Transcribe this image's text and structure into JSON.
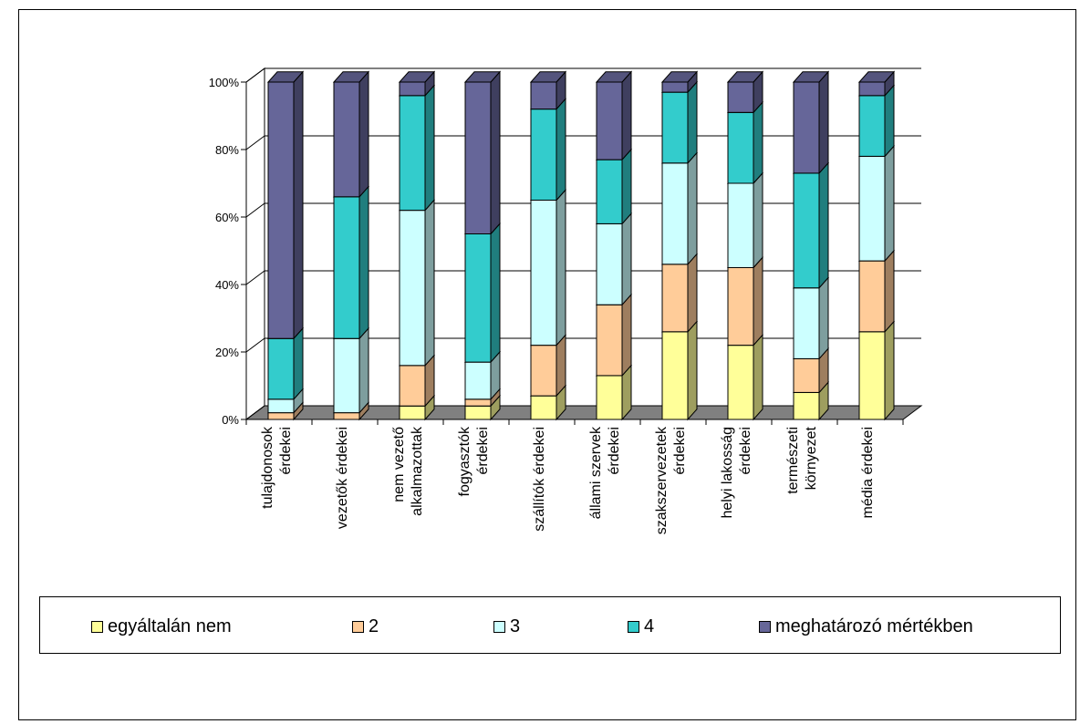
{
  "chart_data": {
    "type": "bar",
    "stacked": "percent",
    "three_d": true,
    "title": "",
    "xlabel": "",
    "ylabel": "",
    "ylim": [
      0,
      100
    ],
    "y_ticks": [
      "0%",
      "20%",
      "40%",
      "60%",
      "80%",
      "100%"
    ],
    "grid": true,
    "legend_position": "bottom",
    "categories": [
      [
        "tulajdonosok",
        "érdekei"
      ],
      [
        "vezetők érdekei"
      ],
      [
        "nem vezető",
        "alkalmazottak"
      ],
      [
        "fogyasztók",
        "érdekei"
      ],
      [
        "szállítók érdekei"
      ],
      [
        "állami szervek",
        "érdekei"
      ],
      [
        "szakszervezetek",
        "érdekei"
      ],
      [
        "helyi lakosság",
        "érdekei"
      ],
      [
        "természeti",
        "környezet"
      ],
      [
        "média érdekei"
      ]
    ],
    "series": [
      {
        "name": "egyáltalán nem",
        "color": "#ffff99",
        "values": [
          0,
          0,
          4,
          4,
          7,
          13,
          26,
          22,
          8,
          26
        ]
      },
      {
        "name": "2",
        "color": "#ffcc99",
        "values": [
          2,
          2,
          12,
          2,
          15,
          21,
          20,
          23,
          10,
          21
        ]
      },
      {
        "name": "3",
        "color": "#ccffff",
        "values": [
          4,
          22,
          46,
          11,
          43,
          24,
          30,
          25,
          21,
          31
        ]
      },
      {
        "name": "4",
        "color": "#33cccc",
        "values": [
          18,
          42,
          34,
          38,
          27,
          19,
          21,
          21,
          34,
          18
        ]
      },
      {
        "name": "meghatározó mértékben",
        "color": "#666699",
        "values": [
          76,
          34,
          4,
          45,
          8,
          23,
          3,
          9,
          27,
          4
        ]
      }
    ]
  }
}
